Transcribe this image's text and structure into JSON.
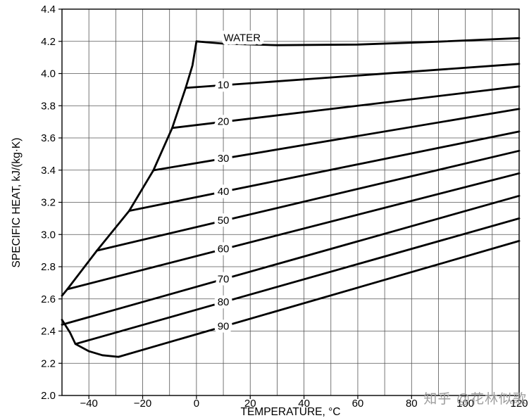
{
  "chart_data": {
    "type": "line",
    "title": "",
    "xlabel": "TEMPERATURE, °C",
    "ylabel": "SPECIFIC HEAT, kJ/(kg·K)",
    "xlim": [
      -50,
      120
    ],
    "ylim": [
      2.0,
      4.4
    ],
    "x_ticks": [
      -40,
      -20,
      0,
      20,
      40,
      60,
      80,
      100,
      120
    ],
    "y_ticks": [
      2.0,
      2.2,
      2.4,
      2.6,
      2.8,
      3.0,
      3.2,
      3.4,
      3.6,
      3.8,
      4.0,
      4.2,
      4.4
    ],
    "x_grid_step": 10,
    "y_grid_step": 0.2,
    "grid": true,
    "colors": {
      "line": "#000000",
      "grid": "#555555",
      "frame": "#000000"
    },
    "series": [
      {
        "name": "water",
        "label": "WATER",
        "label_x": 17,
        "label_dy": -9,
        "points": [
          [
            0,
            4.2
          ],
          [
            10,
            4.186
          ],
          [
            30,
            4.176
          ],
          [
            60,
            4.18
          ],
          [
            90,
            4.198
          ],
          [
            120,
            4.22
          ]
        ]
      },
      {
        "name": "glycol-10",
        "label": "10",
        "label_x": 10,
        "label_dy": 0,
        "points": [
          [
            -4,
            3.911
          ],
          [
            120,
            4.06
          ]
        ]
      },
      {
        "name": "glycol-20",
        "label": "20",
        "label_x": 10,
        "label_dy": 0,
        "points": [
          [
            -9,
            3.662
          ],
          [
            120,
            3.92
          ]
        ]
      },
      {
        "name": "glycol-30",
        "label": "30",
        "label_x": 10,
        "label_dy": 0,
        "points": [
          [
            -16,
            3.399
          ],
          [
            120,
            3.78
          ]
        ]
      },
      {
        "name": "glycol-40",
        "label": "40",
        "label_x": 10,
        "label_dy": 0,
        "points": [
          [
            -25,
            3.147
          ],
          [
            120,
            3.64
          ]
        ]
      },
      {
        "name": "glycol-50",
        "label": "50",
        "label_x": 10,
        "label_dy": 0,
        "points": [
          [
            -37,
            2.9
          ],
          [
            120,
            3.52
          ]
        ]
      },
      {
        "name": "glycol-60",
        "label": "60",
        "label_x": 10,
        "label_dy": 0,
        "points": [
          [
            -48,
            2.66
          ],
          [
            120,
            3.38
          ]
        ]
      },
      {
        "name": "glycol-70",
        "label": "70",
        "label_x": 10,
        "label_dy": 0,
        "points": [
          [
            -50,
            2.44
          ],
          [
            120,
            3.24
          ]
        ]
      },
      {
        "name": "glycol-80",
        "label": "80",
        "label_x": 10,
        "label_dy": 0,
        "points": [
          [
            -45,
            2.32
          ],
          [
            120,
            3.1
          ]
        ]
      },
      {
        "name": "glycol-90",
        "label": "90",
        "label_x": 10,
        "label_dy": 0,
        "points": [
          [
            -29,
            2.24
          ],
          [
            120,
            2.96
          ]
        ]
      },
      {
        "name": "freezing-envelope-upper",
        "label": "",
        "points": [
          [
            0,
            4.2
          ],
          [
            -1.5,
            4.05
          ],
          [
            -4,
            3.911
          ],
          [
            -9,
            3.662
          ],
          [
            -16,
            3.399
          ],
          [
            -25,
            3.147
          ],
          [
            -37,
            2.9
          ],
          [
            -48,
            2.66
          ],
          [
            -50,
            2.62
          ]
        ]
      },
      {
        "name": "freezing-envelope-lower",
        "label": "",
        "points": [
          [
            -50,
            2.47
          ],
          [
            -47,
            2.39
          ],
          [
            -45,
            2.32
          ],
          [
            -40,
            2.275
          ],
          [
            -35,
            2.25
          ],
          [
            -29,
            2.24
          ]
        ]
      }
    ]
  },
  "watermark": {
    "text": "知乎 @花林似歌",
    "color": "#9c9c9c"
  }
}
